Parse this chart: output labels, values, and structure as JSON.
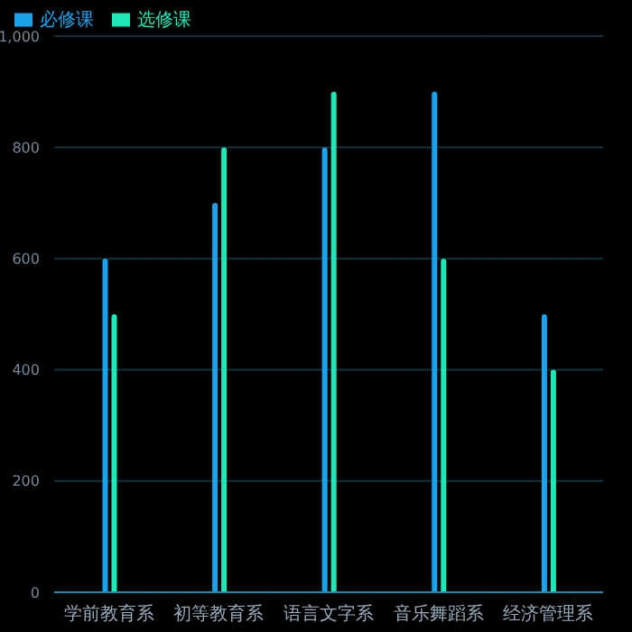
{
  "chart_data": {
    "type": "bar",
    "categories": [
      "学前教育系",
      "初等教育系",
      "语言文字系",
      "音乐舞蹈系",
      "经济管理系"
    ],
    "series": [
      {
        "name": "必修课",
        "color": "#1aa3ec",
        "values": [
          600,
          700,
          800,
          900,
          500
        ]
      },
      {
        "name": "选修课",
        "color": "#1de9b6",
        "values": [
          500,
          800,
          900,
          600,
          400
        ]
      }
    ],
    "ylim": [
      0,
      1000
    ],
    "yticks": [
      0,
      200,
      400,
      600,
      800,
      {
        "value": 1000,
        "label": "1,000"
      }
    ],
    "grid": "y",
    "legend": "top left"
  }
}
